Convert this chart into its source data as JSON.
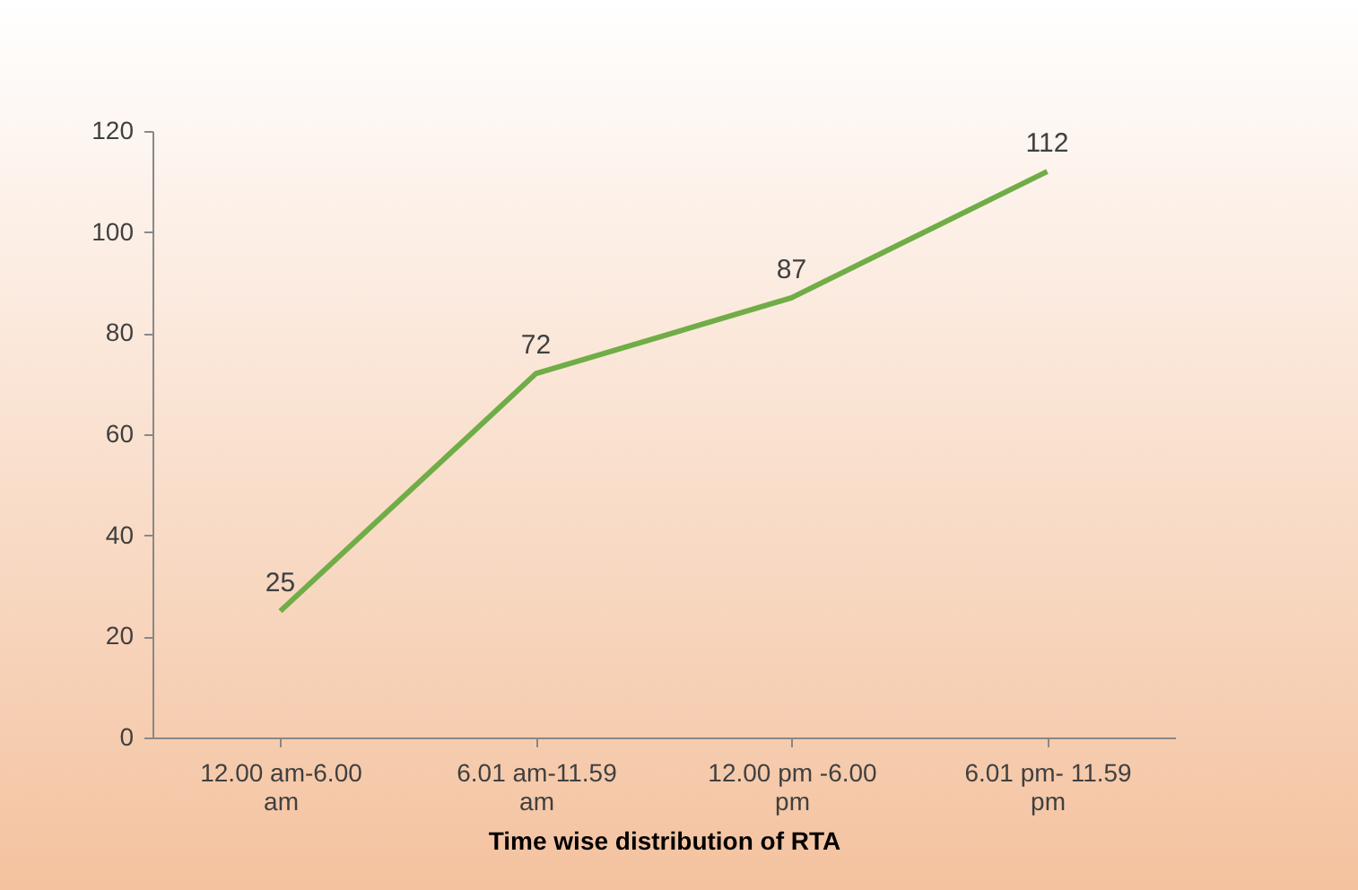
{
  "chart_data": {
    "type": "line",
    "xlabel": "Time wise distribution of RTA",
    "categories": [
      "12.00 am-6.00 am",
      "6.01 am-11.59 am",
      "12.00 pm -6.00 pm",
      "6.01 pm- 11.59 pm"
    ],
    "series": [
      {
        "color": "#70ad47",
        "values": [
          25,
          72,
          87,
          112
        ]
      }
    ],
    "ylim": [
      0,
      120
    ],
    "yticks": [
      0,
      20,
      40,
      60,
      80,
      100,
      120
    ],
    "grid": false,
    "legend": false,
    "data_labels": true,
    "marker": "none",
    "line_style": "solid"
  }
}
